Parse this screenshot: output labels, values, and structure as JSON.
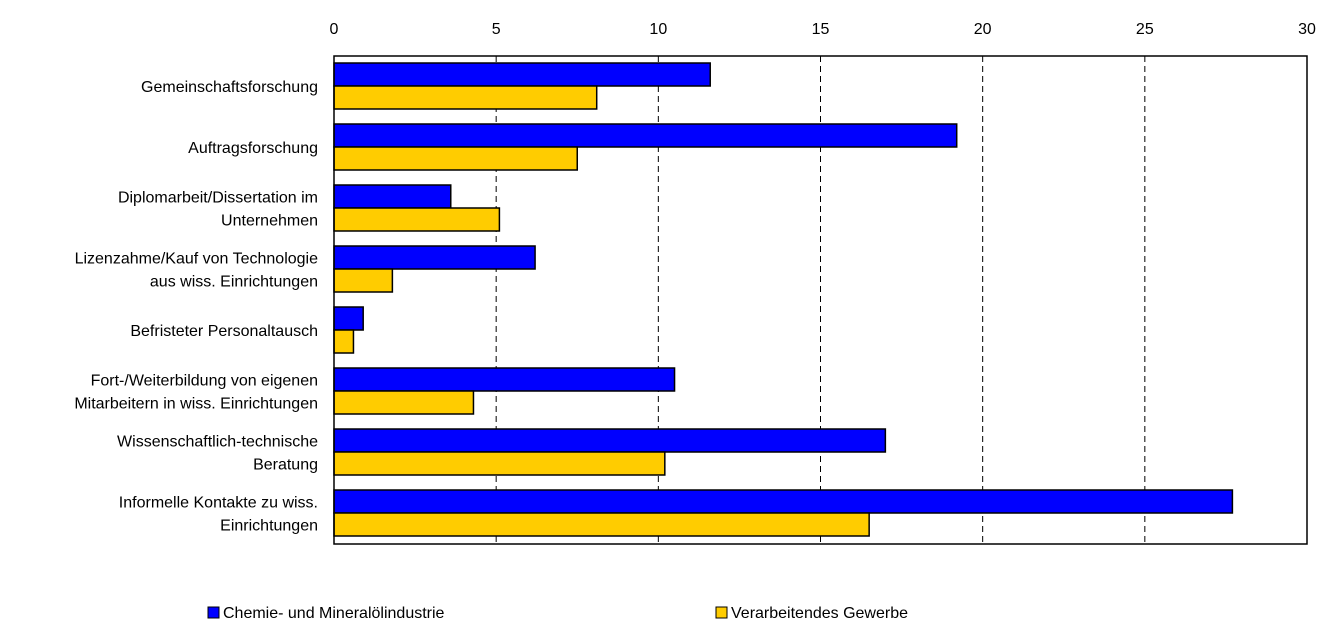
{
  "chart_data": {
    "type": "bar",
    "orientation": "horizontal",
    "title": "",
    "xlabel": "",
    "ylabel": "",
    "xlim": [
      0,
      30
    ],
    "ticks": [
      0,
      5,
      10,
      15,
      20,
      25,
      30
    ],
    "tick_labels": [
      "0",
      "5",
      "10",
      "15",
      "20",
      "25",
      "30"
    ],
    "x_axis_position": "top",
    "grid": "vertical dashed",
    "legend_position": "bottom",
    "categories": [
      [
        "Gemeinschaftsforschung"
      ],
      [
        "Auftragsforschung"
      ],
      [
        "Diplomarbeit/Dissertation im",
        "Unternehmen"
      ],
      [
        "Lizenzahme/Kauf von Technologie",
        "aus wiss. Einrichtungen"
      ],
      [
        "Befristeter Personaltausch"
      ],
      [
        "Fort-/Weiterbildung von eigenen",
        "Mitarbeitern in wiss. Einrichtungen"
      ],
      [
        "Wissenschaftlich-technische",
        "Beratung"
      ],
      [
        "Informelle Kontakte zu wiss.",
        "Einrichtungen"
      ]
    ],
    "series": [
      {
        "name": "Chemie- und Mineralölindustrie",
        "color": "#0000ff",
        "values": [
          11.6,
          19.2,
          3.6,
          6.2,
          0.9,
          10.5,
          17.0,
          27.7
        ]
      },
      {
        "name": "Verarbeitendes Gewerbe",
        "color": "#ffcc00",
        "values": [
          8.1,
          7.5,
          5.1,
          1.8,
          0.6,
          4.3,
          10.2,
          16.5
        ]
      }
    ]
  }
}
